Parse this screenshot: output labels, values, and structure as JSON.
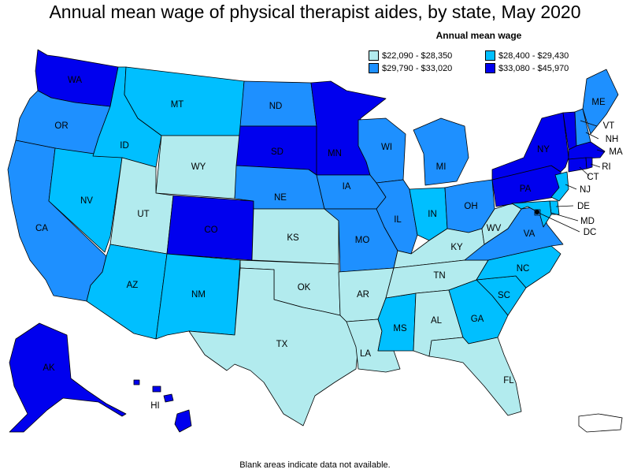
{
  "title": "Annual mean wage of physical therapist aides, by state, May 2020",
  "legend": {
    "title": "Annual mean wage",
    "bins": [
      {
        "label": "$22,090 - $28,350",
        "color": "#b2ebee"
      },
      {
        "label": "$28,400 - $29,430",
        "color": "#00bfff"
      },
      {
        "label": "$29,790 - $33,020",
        "color": "#1e90ff"
      },
      {
        "label": "$33,080 - $45,970",
        "color": "#0000ee"
      }
    ]
  },
  "footnote": "Blank areas indicate data not available.",
  "states": {
    "WA": 3,
    "OR": 2,
    "CA": 2,
    "NV": 1,
    "ID": 1,
    "MT": 1,
    "WY": 0,
    "UT": 0,
    "AZ": 1,
    "CO": 3,
    "NM": 1,
    "ND": 2,
    "SD": 3,
    "NE": 2,
    "KS": 0,
    "OK": 0,
    "TX": 0,
    "MN": 3,
    "IA": 2,
    "MO": 2,
    "AR": 0,
    "LA": 0,
    "WI": 2,
    "IL": 2,
    "MS": 1,
    "MI": 2,
    "IN": 1,
    "OH": 2,
    "KY": 0,
    "TN": 0,
    "AL": 0,
    "GA": 1,
    "FL": 0,
    "SC": 1,
    "NC": 1,
    "VA": 2,
    "WV": 0,
    "PA": 3,
    "NY": 3,
    "NJ": 1,
    "DE": 1,
    "MD": 1,
    "DC": 2,
    "CT": 3,
    "RI": 3,
    "MA": 3,
    "VT": 3,
    "NH": 2,
    "ME": 2,
    "AK": 3,
    "HI": 3
  }
}
